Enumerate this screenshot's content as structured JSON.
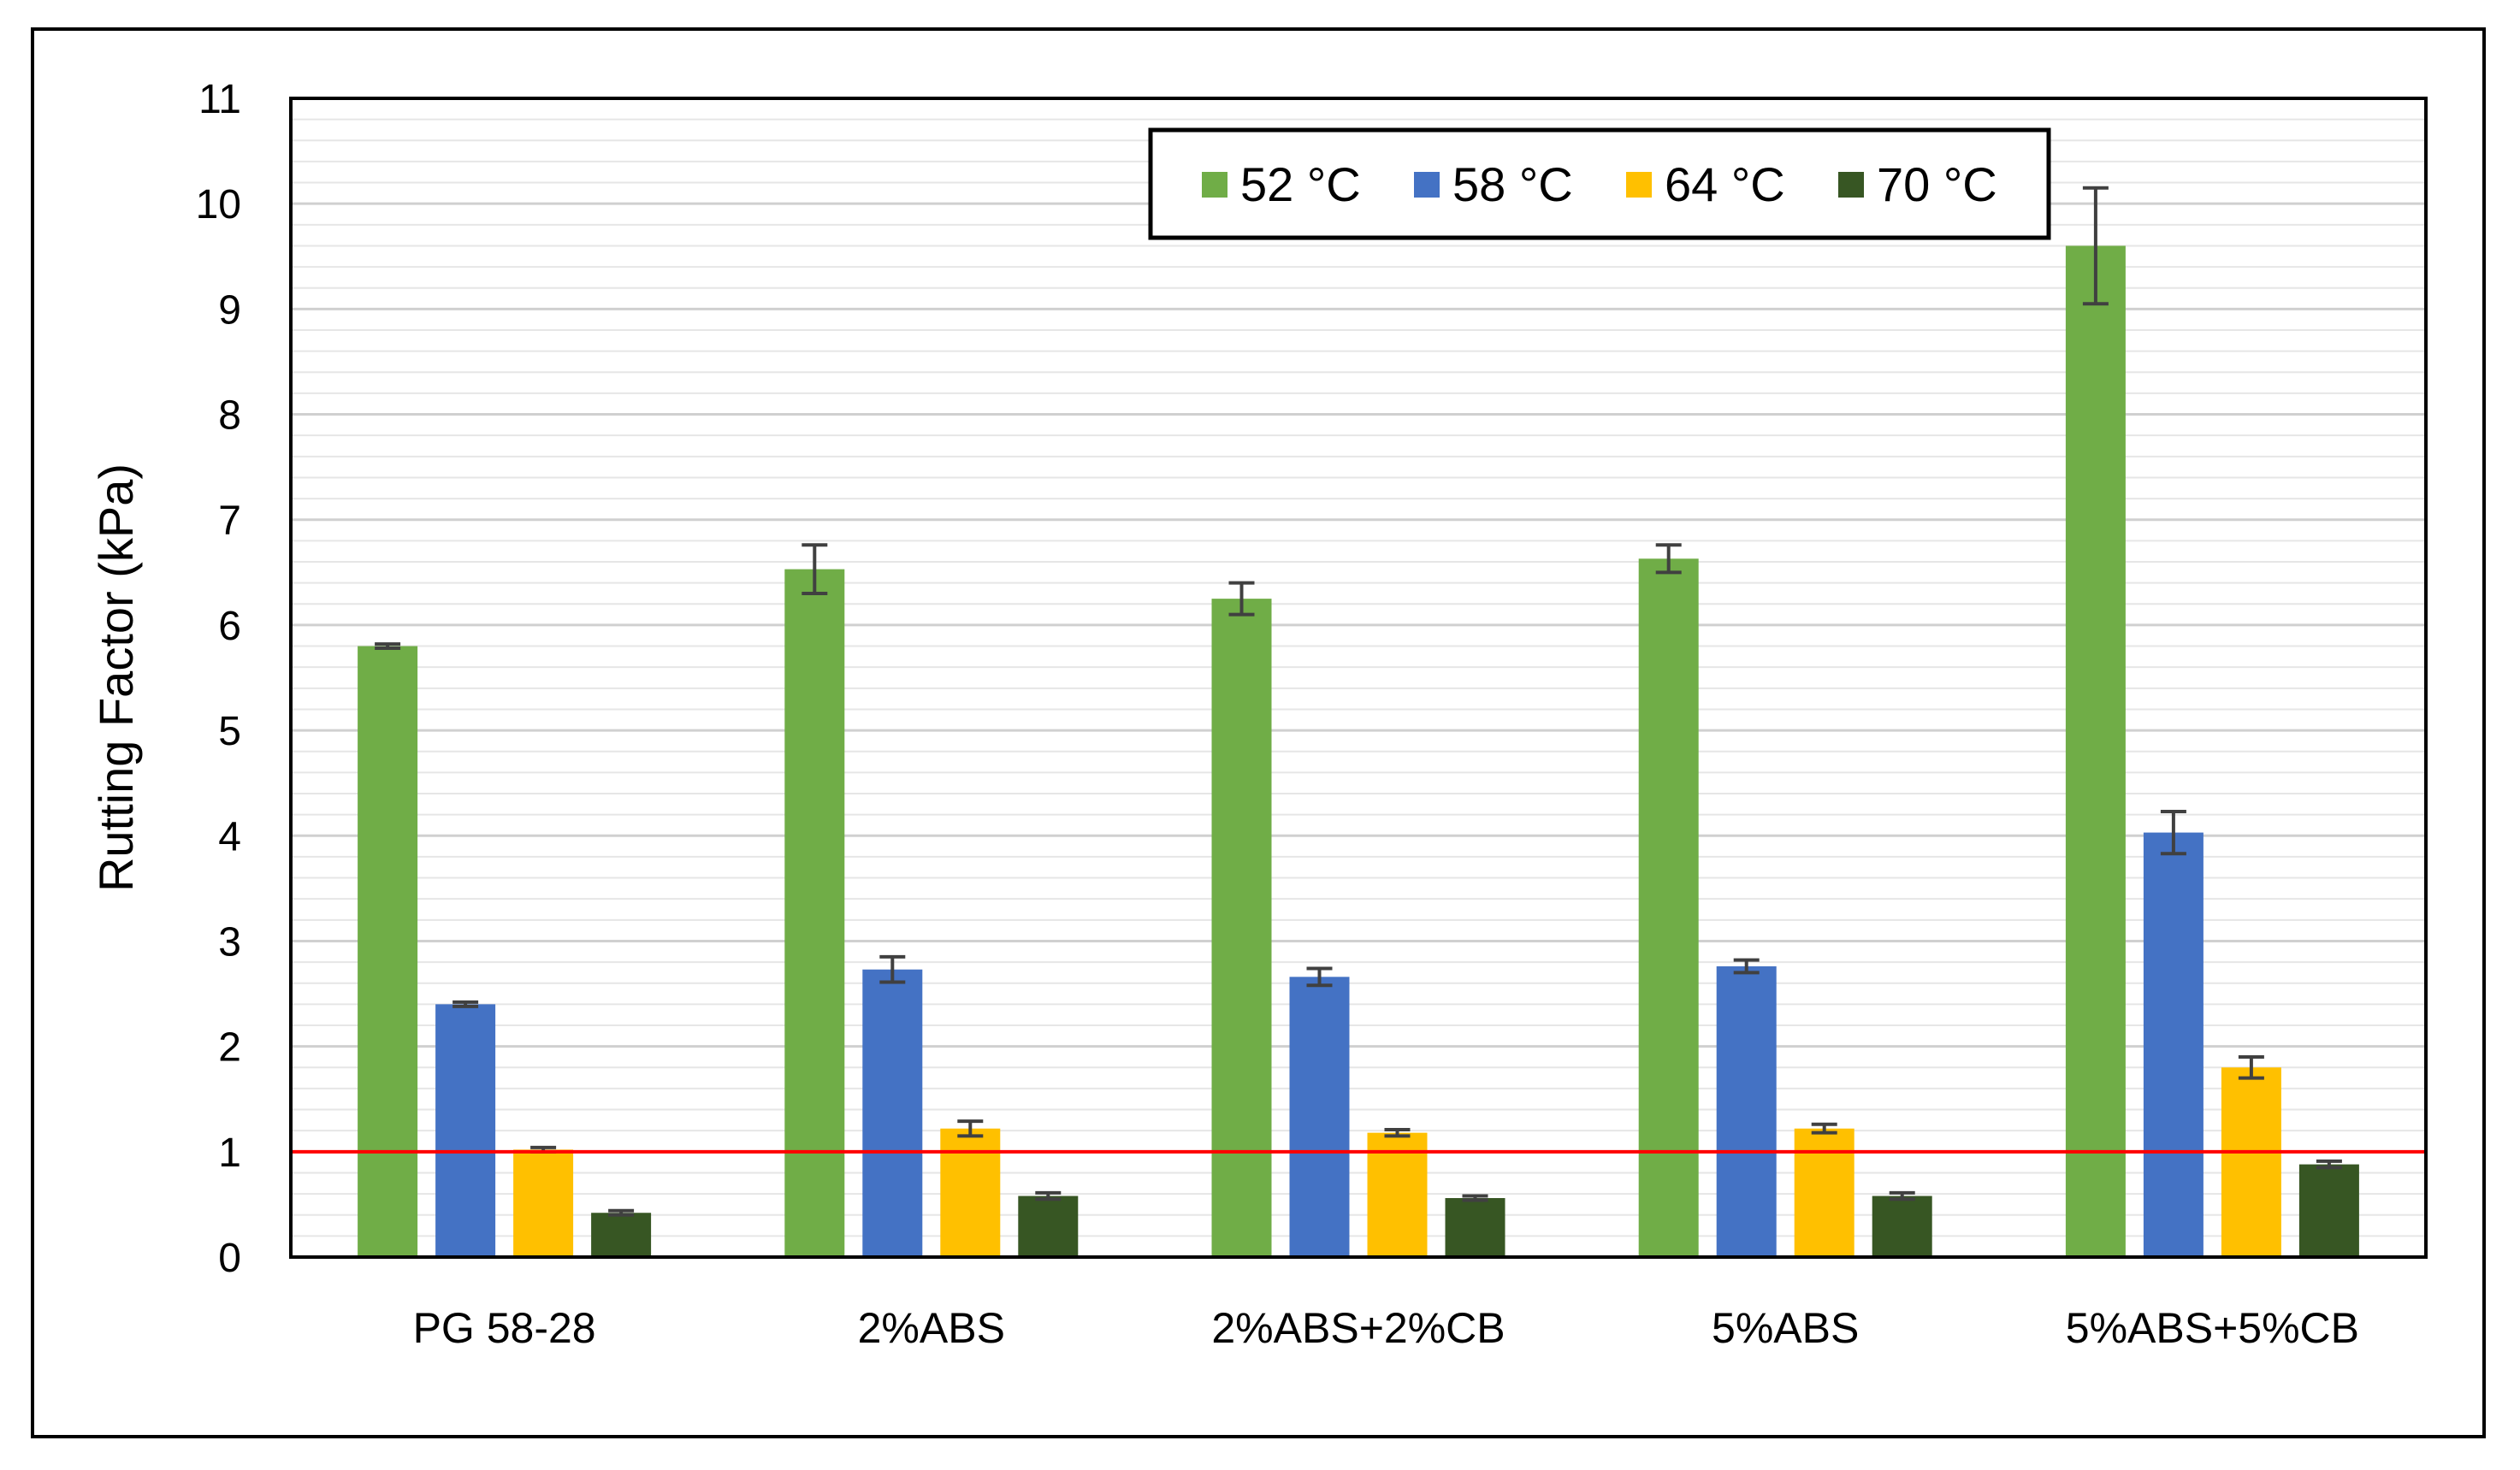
{
  "chart_data": {
    "type": "bar",
    "ylabel": "Rutting Factor (kPa)",
    "xlabel": "",
    "title": "",
    "ylim": [
      0,
      11
    ],
    "yticks": [
      0,
      1,
      2,
      3,
      4,
      5,
      6,
      7,
      8,
      9,
      10,
      11
    ],
    "grid": true,
    "legend_position": "top-center",
    "categories": [
      "PG 58-28",
      "2%ABS",
      "2%ABS+2%CB",
      "5%ABS",
      "5%ABS+5%CB"
    ],
    "series": [
      {
        "name": "52 °C",
        "color": "#70ad47",
        "values": [
          5.8,
          6.53,
          6.25,
          6.63,
          9.6
        ],
        "errors": [
          0.02,
          0.23,
          0.15,
          0.13,
          0.55
        ]
      },
      {
        "name": "58 °C",
        "color": "#4472c4",
        "values": [
          2.4,
          2.73,
          2.66,
          2.76,
          4.03
        ],
        "errors": [
          0.02,
          0.12,
          0.08,
          0.06,
          0.2
        ]
      },
      {
        "name": "64 °C",
        "color": "#ffc000",
        "values": [
          1.02,
          1.22,
          1.18,
          1.22,
          1.8
        ],
        "errors": [
          0.02,
          0.07,
          0.03,
          0.04,
          0.1
        ]
      },
      {
        "name": "70 °C",
        "color": "#375623",
        "values": [
          0.42,
          0.58,
          0.56,
          0.58,
          0.88
        ],
        "errors": [
          0.02,
          0.03,
          0.02,
          0.03,
          0.03
        ]
      }
    ],
    "reference_line": {
      "value": 1,
      "color": "#ff0000"
    }
  }
}
